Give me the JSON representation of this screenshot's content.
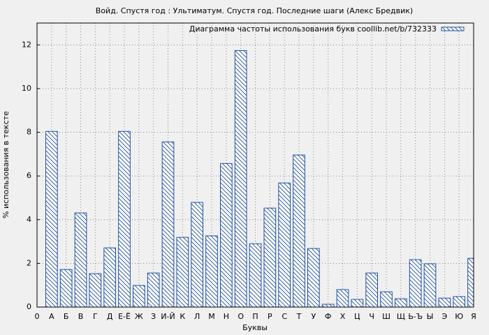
{
  "chart_data": {
    "type": "bar",
    "title": "Войд. Спустя год : Ультиматум. Спустя год. Последние шаги (Алекс Бредвик)",
    "xlabel": "Буквы",
    "ylabel": "% использования в тексте",
    "x": [
      1,
      2,
      3,
      4,
      5,
      6,
      7,
      8,
      9,
      10,
      11,
      12,
      13,
      14,
      15,
      16,
      17,
      18,
      19,
      20,
      21,
      22,
      23,
      24,
      25,
      26,
      27,
      28,
      29,
      30
    ],
    "series": [
      {
        "name": "Диаграмма частоты использования букв coollib.net/b/732333",
        "color": "#1f4fa0",
        "values": [
          8.04,
          1.72,
          4.31,
          1.53,
          2.71,
          8.04,
          0.99,
          1.56,
          7.56,
          3.19,
          4.79,
          3.26,
          6.57,
          11.74,
          2.9,
          4.53,
          5.68,
          6.96,
          2.68,
          0.13,
          0.8,
          0.35,
          1.56,
          0.7,
          0.38,
          2.17,
          1.98,
          0.41,
          0.48,
          2.23
        ]
      }
    ],
    "xlim": [
      0,
      30
    ],
    "xticks": [
      0,
      {
        "value": 1,
        "label": "А"
      },
      {
        "value": 2,
        "label": "Б"
      },
      {
        "value": 3,
        "label": "В"
      },
      {
        "value": 4,
        "label": "Г"
      },
      {
        "value": 5,
        "label": "Д"
      },
      {
        "value": 6,
        "label": "Е-Ё"
      },
      {
        "value": 7,
        "label": "Ж"
      },
      {
        "value": 8,
        "label": "З"
      },
      {
        "value": 9,
        "label": "И-Й"
      },
      {
        "value": 10,
        "label": "К"
      },
      {
        "value": 11,
        "label": "Л"
      },
      {
        "value": 12,
        "label": "М"
      },
      {
        "value": 13,
        "label": "Н"
      },
      {
        "value": 14,
        "label": "О"
      },
      {
        "value": 15,
        "label": "П"
      },
      {
        "value": 16,
        "label": "Р"
      },
      {
        "value": 17,
        "label": "С"
      },
      {
        "value": 18,
        "label": "Т"
      },
      {
        "value": 19,
        "label": "У"
      },
      {
        "value": 20,
        "label": "Ф"
      },
      {
        "value": 21,
        "label": "Х"
      },
      {
        "value": 22,
        "label": "Ц"
      },
      {
        "value": 23,
        "label": "Ч"
      },
      {
        "value": 24,
        "label": "Ш"
      },
      {
        "value": 25,
        "label": "Щ"
      },
      {
        "value": 26,
        "label": "Ь-Ъ"
      },
      {
        "value": 27,
        "label": "Ы"
      },
      {
        "value": 28,
        "label": "Э"
      },
      {
        "value": 29,
        "label": "Ю"
      },
      {
        "value": 30,
        "label": "Я"
      }
    ],
    "ylim": [
      0,
      13
    ],
    "yticks": [
      0,
      2,
      4,
      6,
      8,
      10,
      12
    ],
    "grid": true,
    "legend": "upper right"
  }
}
